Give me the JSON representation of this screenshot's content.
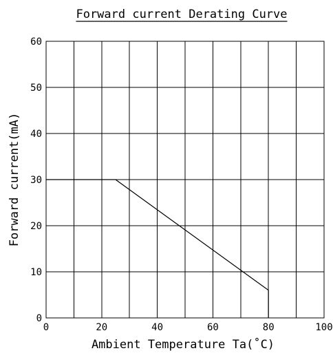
{
  "chart_data": {
    "type": "line",
    "title": "Forward current Derating Curve",
    "xlabel": "Ambient Temperature Ta(˚C)",
    "ylabel": "Forward current(mA)",
    "xlim": [
      0,
      100
    ],
    "ylim": [
      0,
      60
    ],
    "x_ticks": [
      0,
      20,
      40,
      60,
      80,
      100
    ],
    "y_ticks": [
      0,
      10,
      20,
      30,
      40,
      50,
      60
    ],
    "x_grid_step": 10,
    "y_grid_step": 10,
    "grid": true,
    "series": [
      {
        "x": [
          0,
          25,
          80,
          80
        ],
        "y": [
          30,
          30,
          6,
          0
        ]
      }
    ]
  }
}
